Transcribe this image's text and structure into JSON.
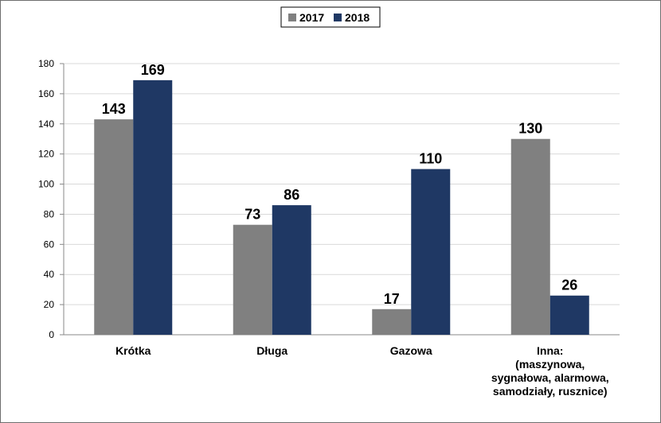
{
  "chart_data": {
    "type": "bar",
    "categories": [
      [
        "Krótka"
      ],
      [
        "Długa"
      ],
      [
        "Gazowa"
      ],
      [
        "Inna:",
        "(maszynowa,",
        "sygnałowa, alarmowa,",
        "samodziały, rusznice)"
      ]
    ],
    "series": [
      {
        "name": "2017",
        "color": "#808080",
        "values": [
          143,
          73,
          17,
          130
        ]
      },
      {
        "name": "2018",
        "color": "#1f3864",
        "values": [
          169,
          86,
          110,
          26
        ]
      }
    ],
    "y_ticks": [
      "0",
      "20",
      "40",
      "60",
      "80",
      "100",
      "120",
      "140",
      "160",
      "180"
    ],
    "ylim": [
      0,
      180
    ],
    "grid": true,
    "legend_position": "top-center",
    "data_labels": true
  }
}
